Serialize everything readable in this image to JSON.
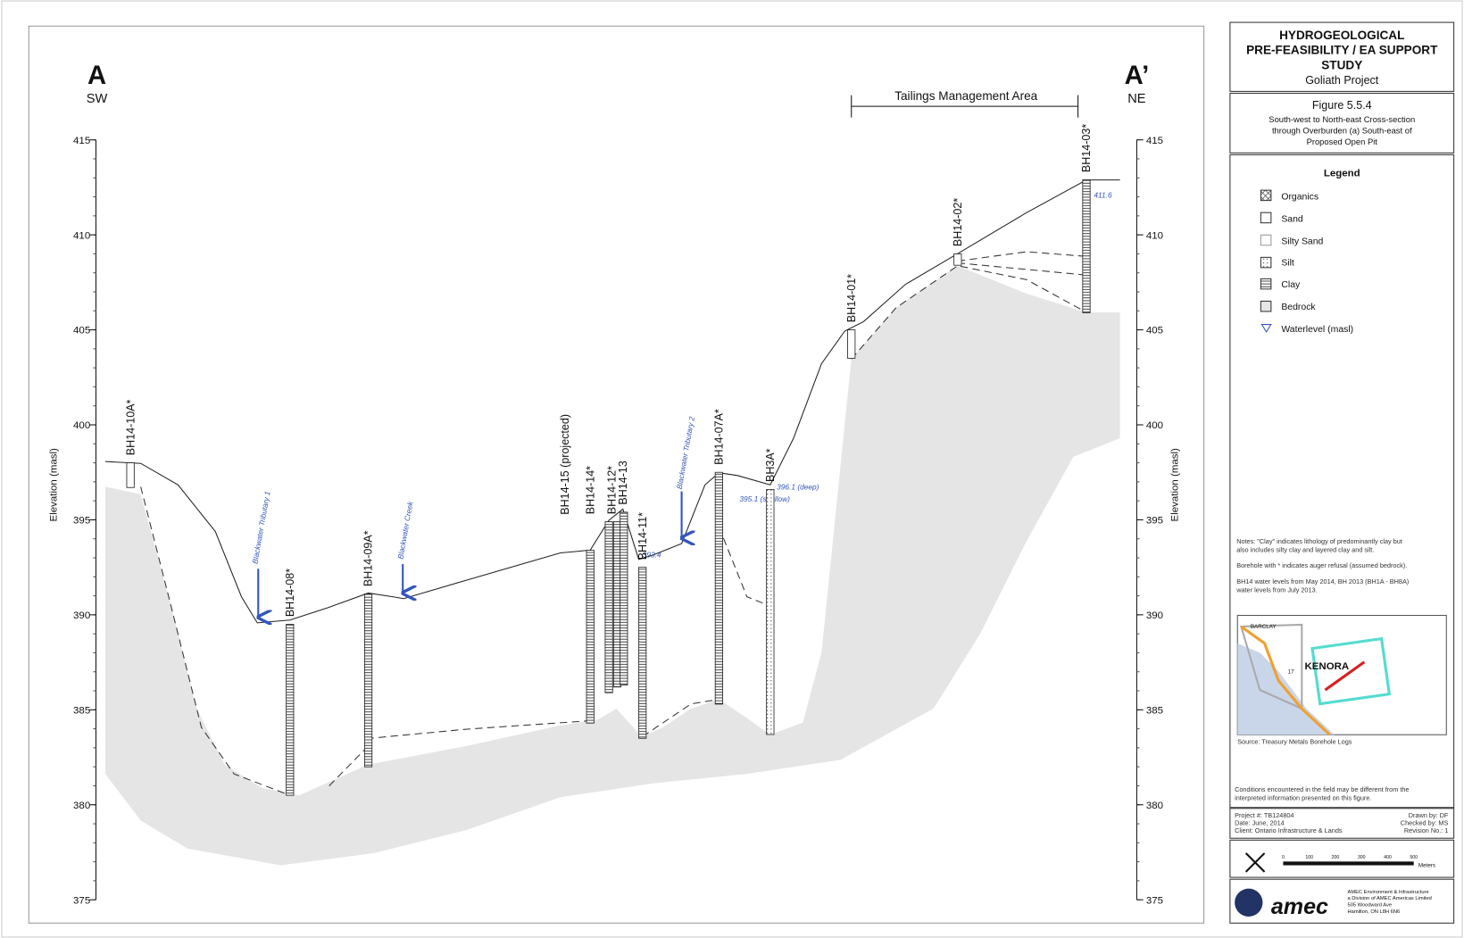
{
  "header": {
    "title_lines": [
      "HYDROGEOLOGICAL",
      "PRE-FEASIBILITY / EA SUPPORT",
      "STUDY"
    ],
    "project": "Goliath Project"
  },
  "figure": {
    "number": "Figure 5.5.4",
    "caption_lines": [
      "South-west to North-east Cross-section",
      "through Overburden (a) South-east of",
      "Proposed Open Pit"
    ]
  },
  "legend": {
    "title": "Legend",
    "items": [
      "Organics",
      "Sand",
      "Silty Sand",
      "Silt",
      "Clay",
      "Bedrock",
      "Waterlevel (masl)"
    ]
  },
  "notes": [
    [
      "Notes: \"Clay\" indicates lithology of predominantly clay but",
      "also includes silty clay and layered clay and silt."
    ],
    [
      "Borehole with * indicates auger refusal (assumed bedrock)."
    ],
    [
      "BH14 water levels from May 2014, BH 2013 (BH1A - BH8A)",
      "water levels from July 2013."
    ]
  ],
  "map": {
    "labels": [
      "BARCLAY",
      "KENORA",
      "17"
    ],
    "source": "Source: Treasury Metals Borehole Logs"
  },
  "conditions_note": [
    "Conditions encountered in the field may be different from the",
    "interpreted information presented on this figure."
  ],
  "project_info": {
    "left": [
      "Project #: TB124804",
      "Date: June, 2014",
      "Client: Ontario Infrastructure & Lands"
    ],
    "right": [
      "Drawn by: DF",
      "Checked by: MS",
      "Revision No.: 1"
    ]
  },
  "scale": {
    "ticks": [
      "0",
      "100",
      "200",
      "300",
      "400",
      "500"
    ],
    "unit": "Meters"
  },
  "company": {
    "name": "amec",
    "address_lines": [
      "AMEC Environment & Infrastructure",
      "a Division of AMEC Americas Limited",
      "505 Woodward Ave",
      "Hamilton, ON L8H 6N6"
    ]
  },
  "section": {
    "start": "A",
    "start_dir": "SW",
    "end": "A’",
    "end_dir": "NE",
    "axis_title": "Elevation (masl)",
    "ylim": [
      375,
      415
    ],
    "yticks": [
      375,
      380,
      385,
      390,
      395,
      400,
      405,
      410,
      415
    ],
    "zone": "Tailings Management Area",
    "streams": [
      "Blackwater Tributary 1",
      "Blackwater Creek",
      "Blackwater Tributary 2"
    ],
    "water_levels": [
      "393.4",
      "395.1 (shallow)",
      "396.1 (deep)",
      "411.6"
    ],
    "boreholes": [
      {
        "name": "BH14-10A*",
        "top": 398,
        "bottom": 396.7
      },
      {
        "name": "BH14-08*",
        "top": 389.5,
        "bottom": 380.5
      },
      {
        "name": "BH14-09A*",
        "top": 391.1,
        "bottom": 382
      },
      {
        "name": "BH14-15 (projected)",
        "top": 393.4,
        "bottom": 384.3
      },
      {
        "name": "BH14-14*",
        "top": 394.9,
        "bottom": 385.9
      },
      {
        "name": "BH14-12*",
        "top": 394.9,
        "bottom": 386.2
      },
      {
        "name": "BH14-13",
        "top": 395.4,
        "bottom": 386.3
      },
      {
        "name": "BH14-11*",
        "top": 392.5,
        "bottom": 383.5
      },
      {
        "name": "BH14-07A*",
        "top": 397.5,
        "bottom": 385.3
      },
      {
        "name": "BH3A*",
        "top": 396.6,
        "bottom": 383.7
      },
      {
        "name": "BH14-01*",
        "top": 405,
        "bottom": 403.5
      },
      {
        "name": "BH14-02*",
        "top": 409,
        "bottom": 408.4
      },
      {
        "name": "BH14-03*",
        "top": 412.9,
        "bottom": 405.9
      }
    ]
  }
}
